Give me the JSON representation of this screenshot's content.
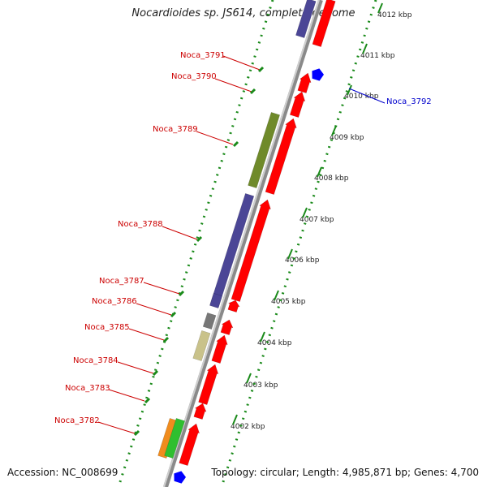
{
  "title": "Nocardioides sp. JS614, complete genome",
  "accession": "Accession: NC_008699",
  "topology": "Topology: circular; Length: 4,985,871 bp; Genes: 4,700",
  "colors": {
    "red": "#ff0000",
    "blue": "#0000ff",
    "purple": "#4b4696",
    "olive": "#6f8a2a",
    "khaki": "#c9c28a",
    "gray": "#777777",
    "orange": "#f08c1e",
    "green": "#2fbf2f",
    "label_red": "#cc0000",
    "label_blue": "#0000cc",
    "scale_green": "#1a8a1a"
  },
  "scale_ticks": [
    "4002 kbp",
    "4003 kbp",
    "4004 kbp",
    "4005 kbp",
    "4006 kbp",
    "4007 kbp",
    "4008 kbp",
    "4009 kbp",
    "4010 kbp",
    "4011 kbp",
    "4012 kbp"
  ],
  "gene_labels": [
    {
      "text": "Noca_3791",
      "color": "label_red"
    },
    {
      "text": "Noca_3790",
      "color": "label_red"
    },
    {
      "text": "Noca_3789",
      "color": "label_red"
    },
    {
      "text": "Noca_3788",
      "color": "label_red"
    },
    {
      "text": "Noca_3787",
      "color": "label_red"
    },
    {
      "text": "Noca_3786",
      "color": "label_red"
    },
    {
      "text": "Noca_3785",
      "color": "label_red"
    },
    {
      "text": "Noca_3784",
      "color": "label_red"
    },
    {
      "text": "Noca_3783",
      "color": "label_red"
    },
    {
      "text": "Noca_3782",
      "color": "label_red"
    },
    {
      "text": "Noca_3792",
      "color": "label_blue"
    }
  ]
}
